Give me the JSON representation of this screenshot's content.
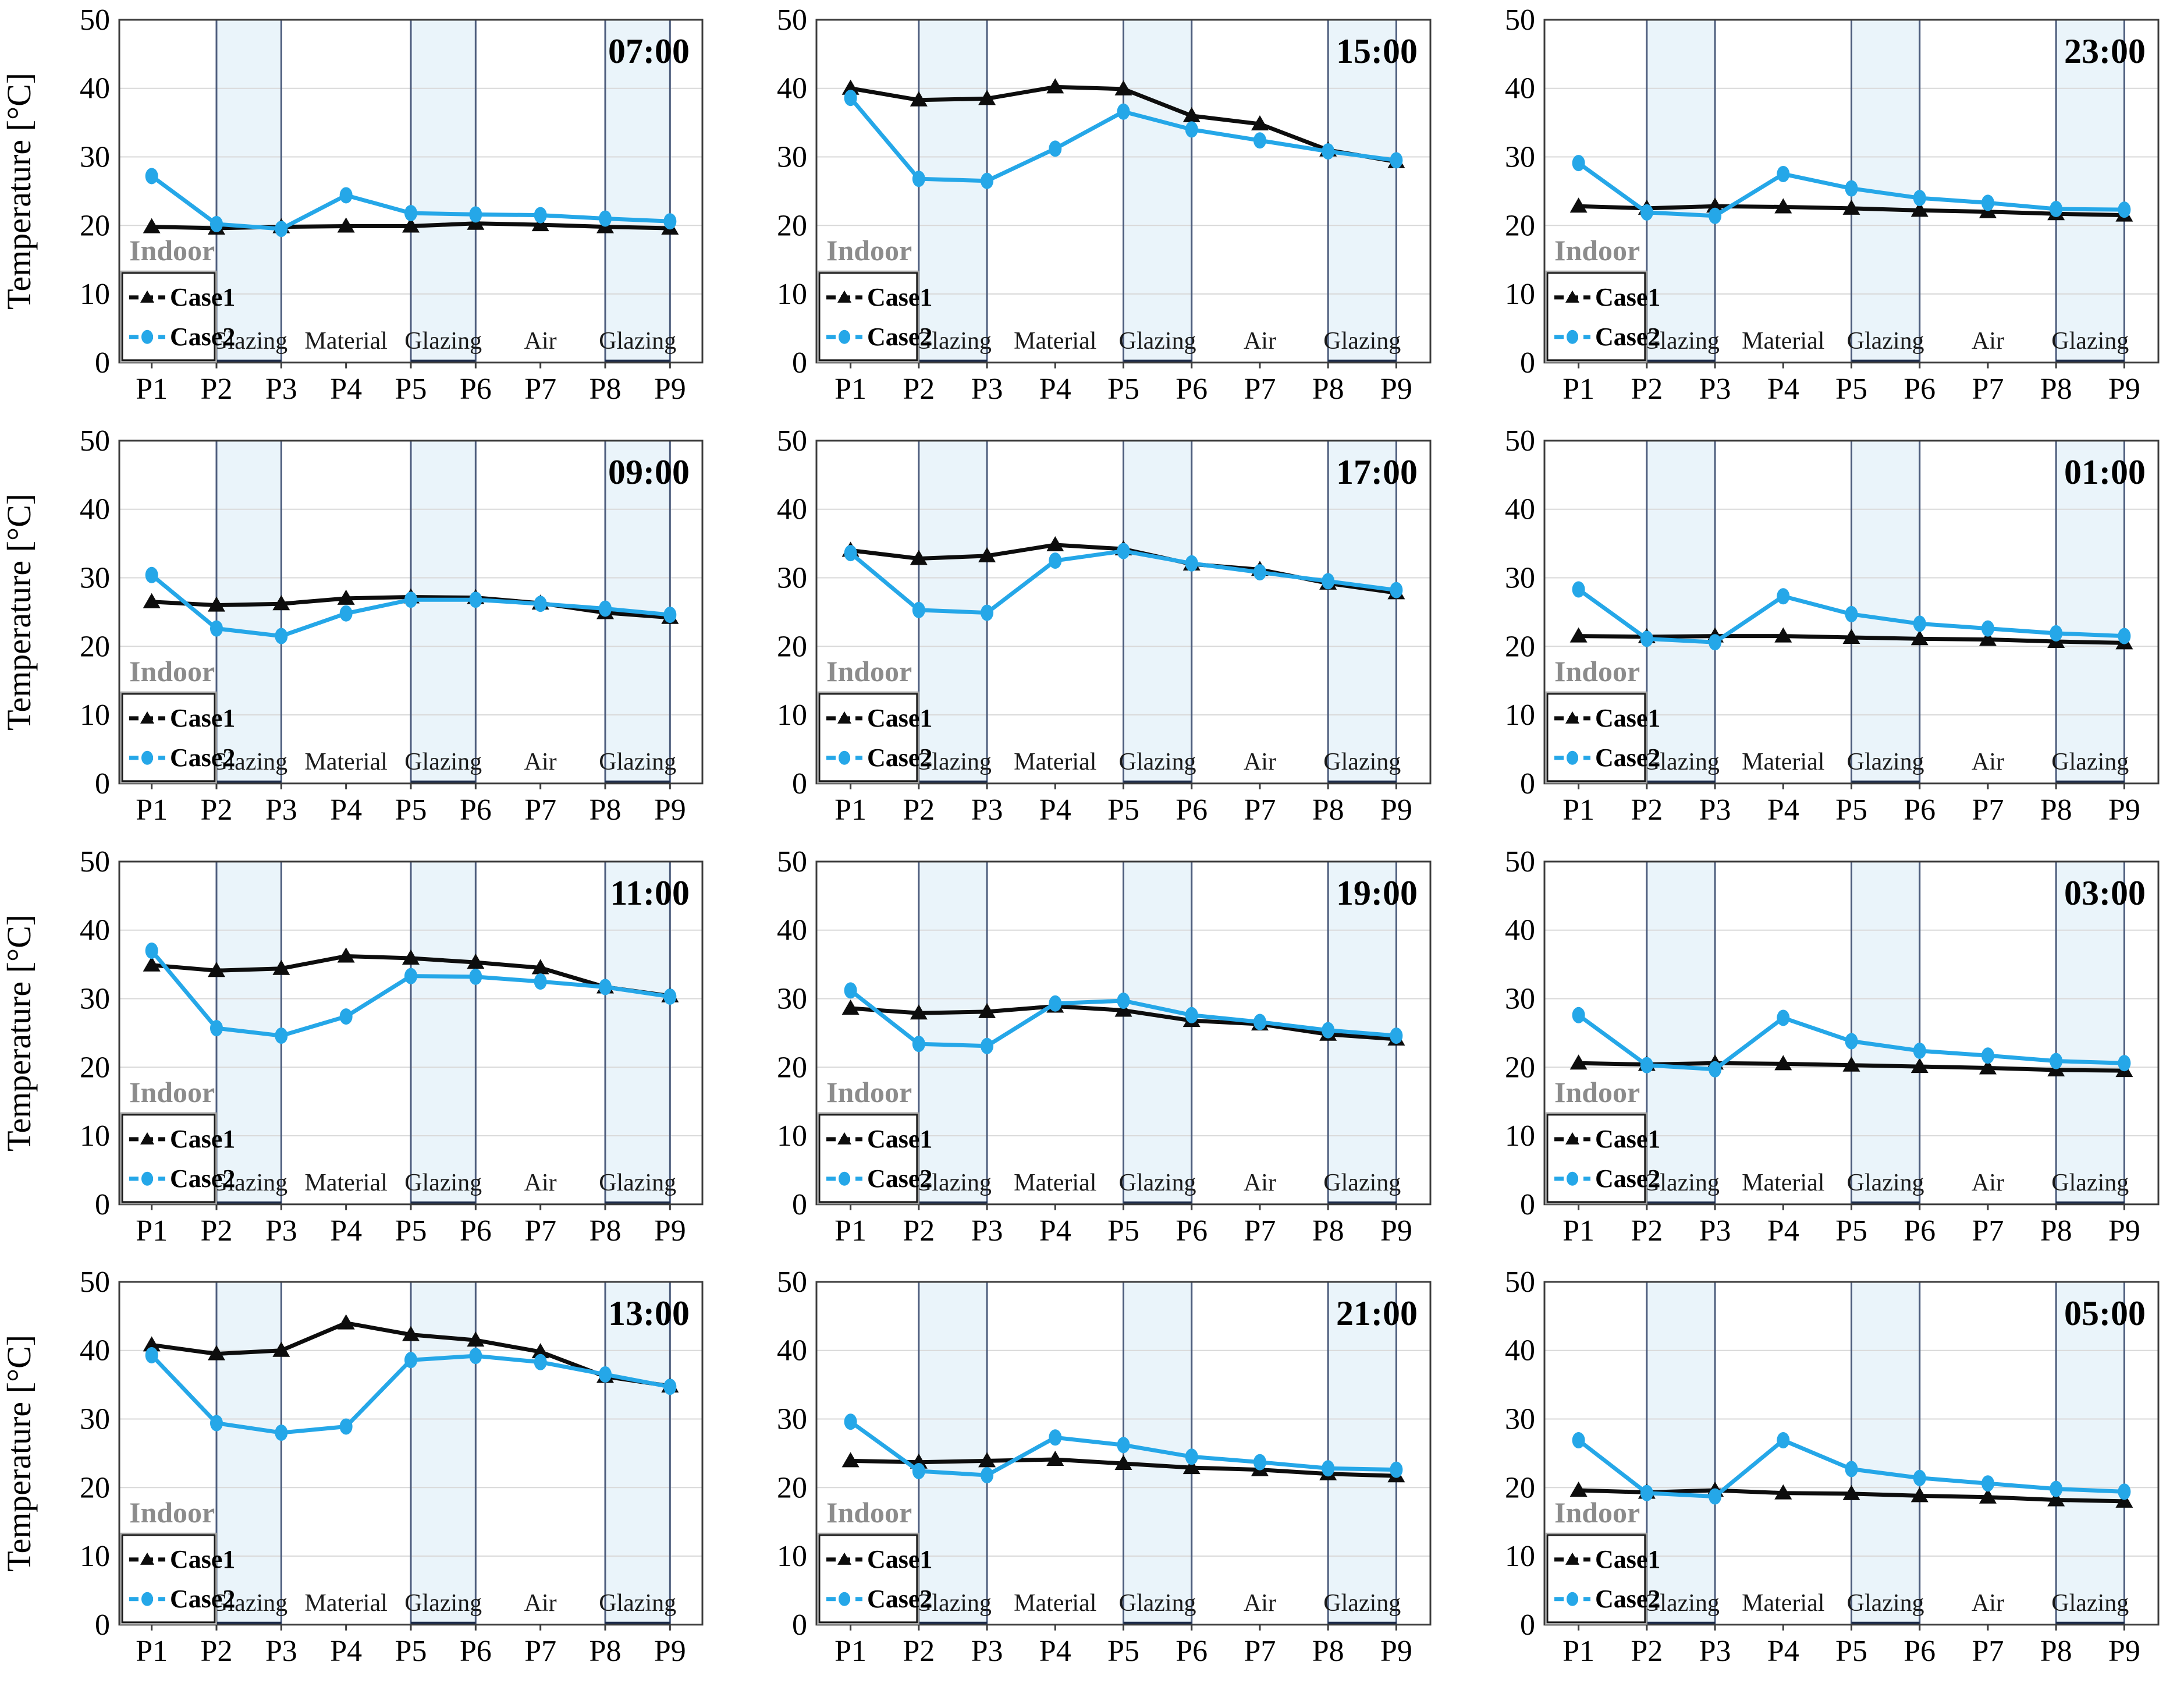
{
  "figure": {
    "kind": "small-multiples line charts",
    "rows": 4,
    "cols": 3
  },
  "axis": {
    "y_label": "Temperature [°C]",
    "y_ticks": [
      0,
      10,
      20,
      30,
      40,
      50
    ],
    "y_min": 0,
    "y_max": 50,
    "x_categories": [
      "P1",
      "P2",
      "P3",
      "P4",
      "P5",
      "P6",
      "P7",
      "P8",
      "P9"
    ]
  },
  "legend": {
    "indoor_label": "Indoor",
    "entries": [
      {
        "name": "Case1",
        "marker": "triangle",
        "color": "#0d0d0d"
      },
      {
        "name": "Case2",
        "marker": "circle",
        "color": "#25a7e8"
      }
    ]
  },
  "regions": [
    {
      "label": "Glazing",
      "start": 1,
      "end": 2,
      "shaded": true
    },
    {
      "label": "Material",
      "start": 2,
      "end": 4,
      "shaded": false
    },
    {
      "label": "Glazing",
      "start": 4,
      "end": 5,
      "shaded": true
    },
    {
      "label": "Air",
      "start": 5,
      "end": 7,
      "shaded": false
    },
    {
      "label": "Glazing",
      "start": 7,
      "end": 8,
      "shaded": true
    }
  ],
  "colors": {
    "case1": "#0d0d0d",
    "case2": "#25a7e8",
    "band_fill": "#eaf4fa",
    "band_border": "#4d5d7d",
    "band_shadow": "#1c2b4a",
    "grid": "#d9d9d9",
    "frame": "#3c3c3c",
    "indoor_text": "#8c8c8c",
    "region_label": "#1a1a1a",
    "tick_label": "#000000"
  },
  "chart_data": [
    {
      "type": "line",
      "time": "07:00",
      "ylim": [
        0,
        50
      ],
      "grid": true,
      "legend_position": "bottom-left",
      "categories": [
        "P1",
        "P2",
        "P3",
        "P4",
        "P5",
        "P6",
        "P7",
        "P8",
        "P9"
      ],
      "series": [
        {
          "name": "Case1",
          "values": [
            19.8,
            19.6,
            19.8,
            19.9,
            19.9,
            20.3,
            20.1,
            19.8,
            19.6
          ]
        },
        {
          "name": "Case2",
          "values": [
            27.2,
            20.2,
            19.5,
            24.4,
            21.8,
            21.6,
            21.5,
            21.0,
            20.6
          ]
        }
      ]
    },
    {
      "type": "line",
      "time": "15:00",
      "ylim": [
        0,
        50
      ],
      "grid": true,
      "legend_position": "bottom-left",
      "categories": [
        "P1",
        "P2",
        "P3",
        "P4",
        "P5",
        "P6",
        "P7",
        "P8",
        "P9"
      ],
      "series": [
        {
          "name": "Case1",
          "values": [
            40.0,
            38.3,
            38.5,
            40.2,
            39.9,
            36.0,
            34.8,
            31.0,
            29.3
          ]
        },
        {
          "name": "Case2",
          "values": [
            38.6,
            26.8,
            26.5,
            31.2,
            36.6,
            34.0,
            32.4,
            30.8,
            29.5
          ]
        }
      ]
    },
    {
      "type": "line",
      "time": "23:00",
      "ylim": [
        0,
        50
      ],
      "grid": true,
      "legend_position": "bottom-left",
      "categories": [
        "P1",
        "P2",
        "P3",
        "P4",
        "P5",
        "P6",
        "P7",
        "P8",
        "P9"
      ],
      "series": [
        {
          "name": "Case1",
          "values": [
            22.8,
            22.5,
            22.8,
            22.7,
            22.5,
            22.2,
            22.0,
            21.7,
            21.5
          ]
        },
        {
          "name": "Case2",
          "values": [
            29.1,
            21.9,
            21.4,
            27.5,
            25.4,
            24.0,
            23.3,
            22.4,
            22.3
          ]
        }
      ]
    },
    {
      "type": "line",
      "time": "09:00",
      "ylim": [
        0,
        50
      ],
      "grid": true,
      "legend_position": "bottom-left",
      "categories": [
        "P1",
        "P2",
        "P3",
        "P4",
        "P5",
        "P6",
        "P7",
        "P8",
        "P9"
      ],
      "series": [
        {
          "name": "Case1",
          "values": [
            26.5,
            26.0,
            26.2,
            27.0,
            27.2,
            27.1,
            26.3,
            24.9,
            24.2
          ]
        },
        {
          "name": "Case2",
          "values": [
            30.4,
            22.6,
            21.5,
            24.8,
            26.8,
            26.8,
            26.2,
            25.5,
            24.6
          ]
        }
      ]
    },
    {
      "type": "line",
      "time": "17:00",
      "ylim": [
        0,
        50
      ],
      "grid": true,
      "legend_position": "bottom-left",
      "categories": [
        "P1",
        "P2",
        "P3",
        "P4",
        "P5",
        "P6",
        "P7",
        "P8",
        "P9"
      ],
      "series": [
        {
          "name": "Case1",
          "values": [
            34.0,
            32.8,
            33.2,
            34.8,
            34.2,
            32.0,
            31.2,
            29.2,
            27.8
          ]
        },
        {
          "name": "Case2",
          "values": [
            33.6,
            25.3,
            24.9,
            32.5,
            33.9,
            32.1,
            30.8,
            29.5,
            28.2
          ]
        }
      ]
    },
    {
      "type": "line",
      "time": "01:00",
      "ylim": [
        0,
        50
      ],
      "grid": true,
      "legend_position": "bottom-left",
      "categories": [
        "P1",
        "P2",
        "P3",
        "P4",
        "P5",
        "P6",
        "P7",
        "P8",
        "P9"
      ],
      "series": [
        {
          "name": "Case1",
          "values": [
            21.5,
            21.4,
            21.5,
            21.5,
            21.3,
            21.1,
            21.0,
            20.7,
            20.5
          ]
        },
        {
          "name": "Case2",
          "values": [
            28.3,
            21.1,
            20.6,
            27.3,
            24.7,
            23.3,
            22.6,
            21.9,
            21.5
          ]
        }
      ]
    },
    {
      "type": "line",
      "time": "11:00",
      "ylim": [
        0,
        50
      ],
      "grid": true,
      "legend_position": "bottom-left",
      "categories": [
        "P1",
        "P2",
        "P3",
        "P4",
        "P5",
        "P6",
        "P7",
        "P8",
        "P9"
      ],
      "series": [
        {
          "name": "Case1",
          "values": [
            34.9,
            34.1,
            34.4,
            36.2,
            35.9,
            35.3,
            34.5,
            31.7,
            30.4
          ]
        },
        {
          "name": "Case2",
          "values": [
            37.0,
            25.7,
            24.6,
            27.4,
            33.3,
            33.2,
            32.5,
            31.7,
            30.3
          ]
        }
      ]
    },
    {
      "type": "line",
      "time": "19:00",
      "ylim": [
        0,
        50
      ],
      "grid": true,
      "legend_position": "bottom-left",
      "categories": [
        "P1",
        "P2",
        "P3",
        "P4",
        "P5",
        "P6",
        "P7",
        "P8",
        "P9"
      ],
      "series": [
        {
          "name": "Case1",
          "values": [
            28.6,
            27.9,
            28.1,
            28.9,
            28.3,
            26.8,
            26.3,
            24.8,
            24.1
          ]
        },
        {
          "name": "Case2",
          "values": [
            31.2,
            23.4,
            23.1,
            29.3,
            29.7,
            27.6,
            26.6,
            25.4,
            24.6
          ]
        }
      ]
    },
    {
      "type": "line",
      "time": "03:00",
      "ylim": [
        0,
        50
      ],
      "grid": true,
      "legend_position": "bottom-left",
      "categories": [
        "P1",
        "P2",
        "P3",
        "P4",
        "P5",
        "P6",
        "P7",
        "P8",
        "P9"
      ],
      "series": [
        {
          "name": "Case1",
          "values": [
            20.6,
            20.4,
            20.6,
            20.5,
            20.3,
            20.1,
            19.9,
            19.6,
            19.5
          ]
        },
        {
          "name": "Case2",
          "values": [
            27.6,
            20.3,
            19.7,
            27.2,
            23.8,
            22.4,
            21.7,
            20.9,
            20.6
          ]
        }
      ]
    },
    {
      "type": "line",
      "time": "13:00",
      "ylim": [
        0,
        50
      ],
      "grid": true,
      "legend_position": "bottom-left",
      "categories": [
        "P1",
        "P2",
        "P3",
        "P4",
        "P5",
        "P6",
        "P7",
        "P8",
        "P9"
      ],
      "series": [
        {
          "name": "Case1",
          "values": [
            40.8,
            39.5,
            40.0,
            44.0,
            42.3,
            41.5,
            39.8,
            36.2,
            34.8
          ]
        },
        {
          "name": "Case2",
          "values": [
            39.3,
            29.4,
            28.0,
            28.9,
            38.6,
            39.2,
            38.3,
            36.5,
            34.7
          ]
        }
      ]
    },
    {
      "type": "line",
      "time": "21:00",
      "ylim": [
        0,
        50
      ],
      "grid": true,
      "legend_position": "bottom-left",
      "categories": [
        "P1",
        "P2",
        "P3",
        "P4",
        "P5",
        "P6",
        "P7",
        "P8",
        "P9"
      ],
      "series": [
        {
          "name": "Case1",
          "values": [
            23.9,
            23.7,
            23.9,
            24.1,
            23.5,
            22.9,
            22.6,
            22.0,
            21.7
          ]
        },
        {
          "name": "Case2",
          "values": [
            29.6,
            22.4,
            21.8,
            27.3,
            26.2,
            24.5,
            23.7,
            22.8,
            22.6
          ]
        }
      ]
    },
    {
      "type": "line",
      "time": "05:00",
      "ylim": [
        0,
        50
      ],
      "grid": true,
      "legend_position": "bottom-left",
      "categories": [
        "P1",
        "P2",
        "P3",
        "P4",
        "P5",
        "P6",
        "P7",
        "P8",
        "P9"
      ],
      "series": [
        {
          "name": "Case1",
          "values": [
            19.6,
            19.3,
            19.6,
            19.2,
            19.1,
            18.8,
            18.6,
            18.2,
            18.0
          ]
        },
        {
          "name": "Case2",
          "values": [
            26.9,
            19.2,
            18.7,
            26.9,
            22.7,
            21.4,
            20.6,
            19.8,
            19.4
          ]
        }
      ]
    }
  ]
}
